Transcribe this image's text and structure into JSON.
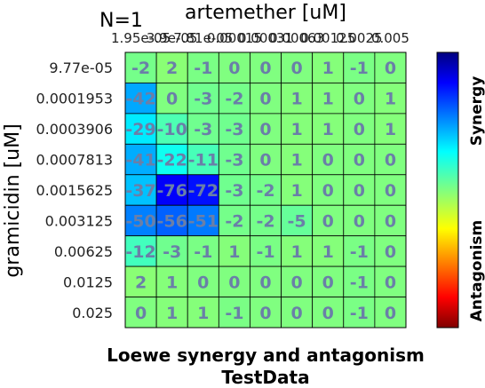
{
  "chart_data": {
    "type": "heatmap",
    "corner_label": "N=1",
    "title": "Loewe synergy and antagonism",
    "subtitle": "TestData",
    "xlabel": "artemether [uM]",
    "ylabel": "gramicidin [uM]",
    "x_categories": [
      "1.95e-05",
      "3.9e-05",
      "7.81e-05",
      "0.00015",
      "0.00031",
      "0.00063",
      "0.00125",
      "0.0025",
      "0.005"
    ],
    "y_categories": [
      "9.77e-05",
      "0.0001953",
      "0.0003906",
      "0.0007813",
      "0.0015625",
      "0.003125",
      "0.00625",
      "0.0125",
      "0.025"
    ],
    "values": [
      [
        -2,
        2,
        -1,
        0,
        0,
        0,
        1,
        -1,
        0
      ],
      [
        -42,
        0,
        -3,
        -2,
        0,
        1,
        1,
        0,
        1
      ],
      [
        -29,
        -10,
        -3,
        -3,
        0,
        1,
        1,
        0,
        1
      ],
      [
        -41,
        -22,
        -11,
        -3,
        0,
        1,
        0,
        0,
        0
      ],
      [
        -37,
        -76,
        -72,
        -3,
        -2,
        1,
        0,
        0,
        0
      ],
      [
        -50,
        -56,
        -51,
        -2,
        -2,
        -5,
        0,
        0,
        0
      ],
      [
        -12,
        -3,
        -1,
        1,
        -1,
        1,
        1,
        -1,
        0
      ],
      [
        2,
        1,
        0,
        0,
        0,
        0,
        0,
        -1,
        0
      ],
      [
        0,
        1,
        1,
        -1,
        0,
        0,
        0,
        -1,
        0
      ]
    ],
    "colorbar_range": [
      -100,
      100
    ],
    "colorbar_labels": {
      "top": "Synergy",
      "bottom": "Antagonism"
    },
    "colormap": "jet",
    "value_label_color": "#6a7fa8",
    "grid": true
  }
}
